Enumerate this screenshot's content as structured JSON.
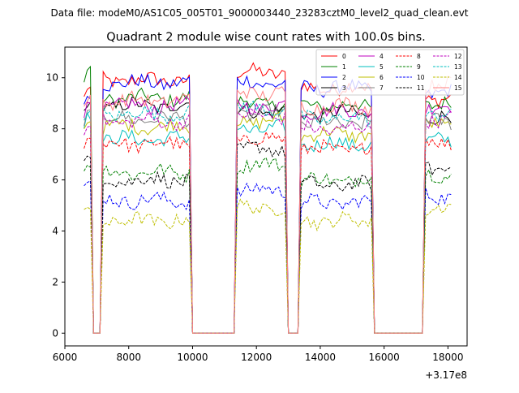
{
  "figure": {
    "suptitle": "Data file: modeM0/AS1C05_005T01_9000003440_23283cztM0_level2_quad_clean.evt"
  },
  "chart_data": {
    "type": "line",
    "title": "Quadrant 2 module wise count rates with 100.0s bins.",
    "xlabel": "",
    "ylabel": "",
    "x_offset_label": "+3.17e8",
    "xlim": [
      6000,
      18600
    ],
    "ylim": [
      -0.5,
      11.2
    ],
    "xticks": [
      6000,
      8000,
      10000,
      12000,
      14000,
      16000,
      18000
    ],
    "yticks": [
      0,
      2,
      4,
      6,
      8,
      10
    ],
    "grid": false,
    "legend": {
      "placement": "top-right",
      "columns": 4
    },
    "base_offset": 317000000,
    "active_windows": [
      [
        6600,
        6800,
        "ramp-in"
      ],
      [
        7200,
        9900,
        "on"
      ],
      [
        11400,
        12950,
        "on"
      ],
      [
        13400,
        15650,
        "on"
      ],
      [
        17300,
        18100,
        "on"
      ]
    ],
    "series": [
      {
        "name": "0",
        "color": "#ff0000",
        "dash": "solid",
        "level": 9.9,
        "levels": [
          9.6,
          9.9,
          10.2,
          9.6,
          9.2
        ]
      },
      {
        "name": "1",
        "color": "#008000",
        "dash": "solid",
        "level": 9.1,
        "levels": [
          10.3,
          9.2,
          9.0,
          8.9,
          9.0
        ]
      },
      {
        "name": "2",
        "color": "#0000ff",
        "dash": "solid",
        "level": 9.6,
        "levels": [
          9.3,
          9.8,
          9.8,
          9.6,
          9.4
        ]
      },
      {
        "name": "3",
        "color": "#000000",
        "dash": "solid",
        "level": 8.6,
        "levels": [
          9.0,
          8.9,
          8.7,
          8.6,
          8.4
        ]
      },
      {
        "name": "4",
        "color": "#bf00bf",
        "dash": "solid",
        "level": 8.9,
        "levels": [
          8.9,
          8.9,
          8.9,
          8.7,
          8.8
        ]
      },
      {
        "name": "5",
        "color": "#00bfbf",
        "dash": "solid",
        "level": 7.5,
        "levels": [
          8.5,
          7.6,
          8.0,
          7.4,
          7.5
        ]
      },
      {
        "name": "6",
        "color": "#bfbf00",
        "dash": "solid",
        "level": 8.0,
        "levels": [
          8.3,
          8.1,
          8.3,
          7.8,
          8.1
        ]
      },
      {
        "name": "7",
        "color": "#808080",
        "dash": "solid",
        "level": 8.3,
        "levels": [
          8.6,
          8.4,
          8.6,
          8.2,
          8.3
        ]
      },
      {
        "name": "8",
        "color": "#ff0000",
        "dash": "dashed",
        "level": 7.4,
        "levels": [
          7.6,
          7.4,
          7.6,
          7.2,
          7.5
        ]
      },
      {
        "name": "9",
        "color": "#008000",
        "dash": "dashed",
        "level": 6.2,
        "levels": [
          6.6,
          6.3,
          6.6,
          6.0,
          6.2
        ]
      },
      {
        "name": "10",
        "color": "#0000ff",
        "dash": "dashed",
        "level": 5.2,
        "levels": [
          5.9,
          5.2,
          5.6,
          5.1,
          5.4
        ]
      },
      {
        "name": "11",
        "color": "#000000",
        "dash": "dashed",
        "level": 5.8,
        "levels": [
          6.9,
          6.0,
          7.2,
          5.8,
          6.5
        ]
      },
      {
        "name": "12",
        "color": "#bf00bf",
        "dash": "dashed",
        "level": 8.2,
        "levels": [
          8.2,
          8.3,
          8.5,
          8.0,
          8.4
        ]
      },
      {
        "name": "13",
        "color": "#00bfbf",
        "dash": "dashed",
        "level": 8.5,
        "levels": [
          8.7,
          8.6,
          8.8,
          8.4,
          8.6
        ]
      },
      {
        "name": "14",
        "color": "#bfbf00",
        "dash": "dashed",
        "level": 4.4,
        "levels": [
          4.9,
          4.4,
          4.9,
          4.4,
          4.9
        ]
      },
      {
        "name": "15",
        "color": "#ff8080",
        "dash": "solid",
        "level": 9.0,
        "levels": [
          9.2,
          9.1,
          9.4,
          8.9,
          9.7
        ]
      }
    ]
  }
}
